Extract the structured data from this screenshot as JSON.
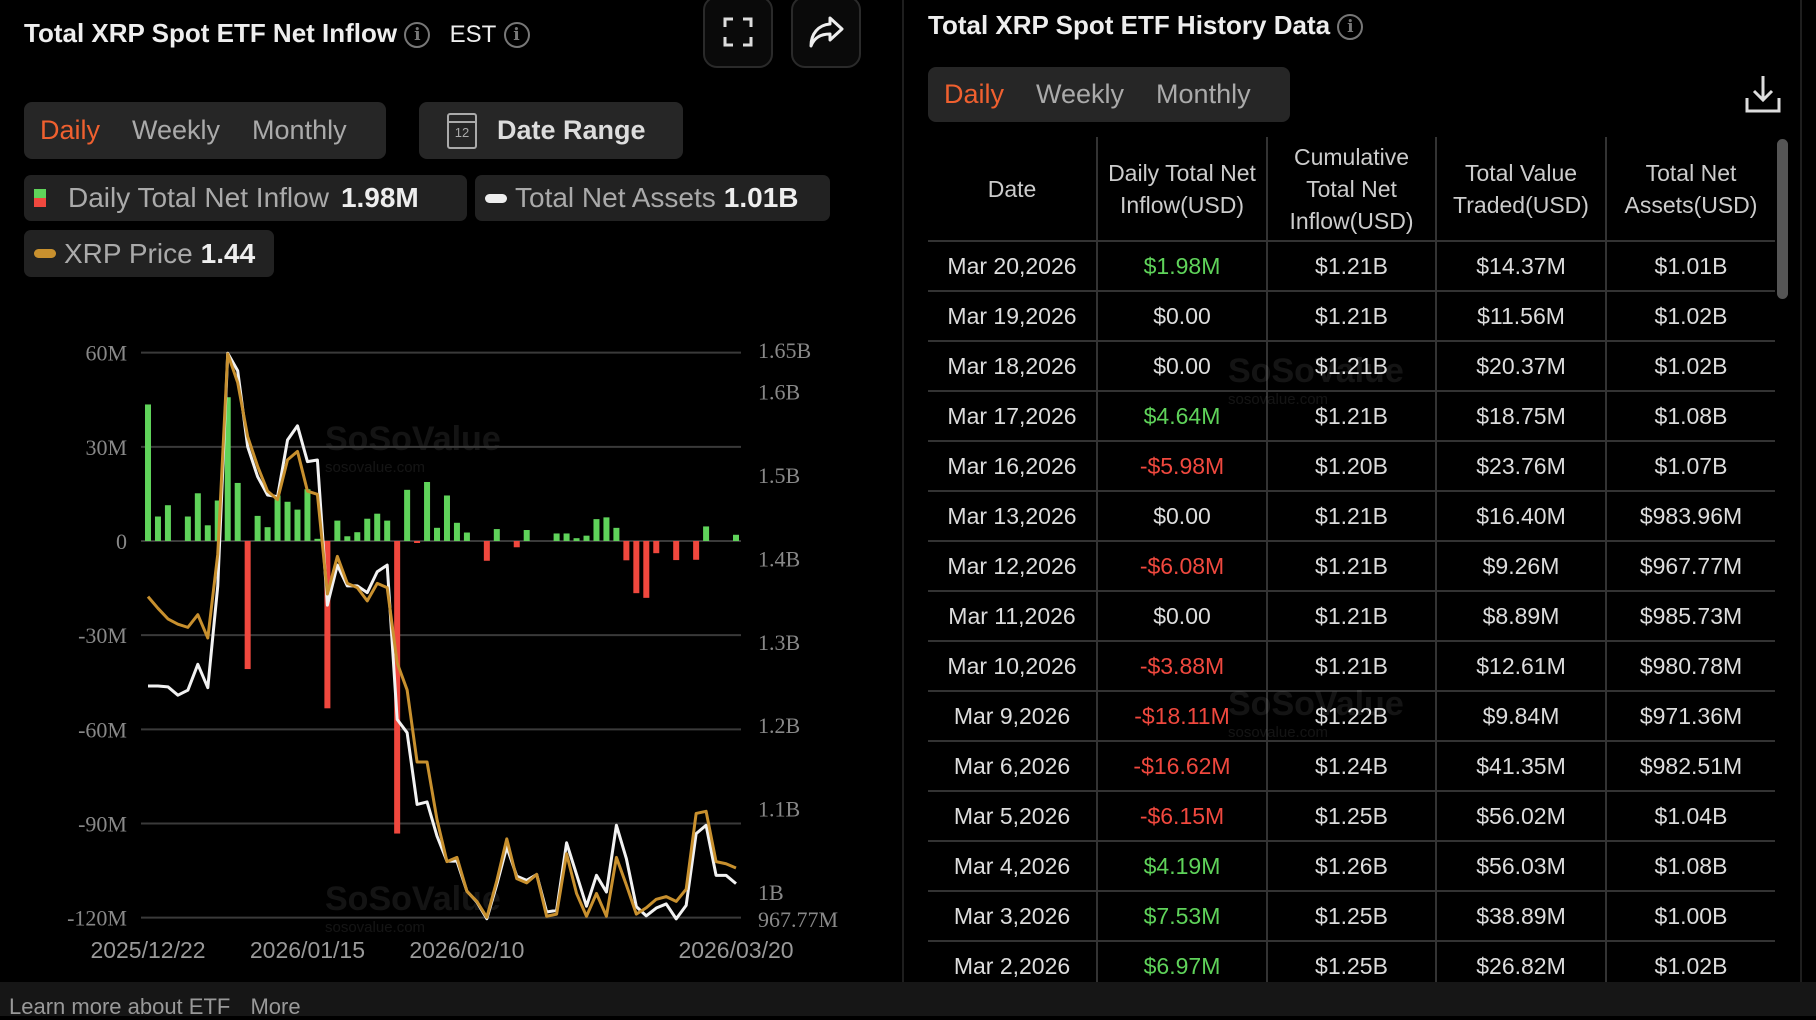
{
  "left": {
    "title": "Total XRP Spot ETF Net Inflow",
    "timezone": "EST",
    "tabs": [
      "Daily",
      "Weekly",
      "Monthly"
    ],
    "active_tab": "Daily",
    "date_range_label": "Date Range",
    "calendar_day": "12",
    "legend": [
      {
        "label": "Daily Total Net Inflow",
        "value": "1.98M"
      },
      {
        "label": "Total Net Assets",
        "value": "1.01B"
      },
      {
        "label": "XRP Price",
        "value": "1.44"
      }
    ]
  },
  "right": {
    "title": "Total XRP Spot ETF History Data",
    "tabs": [
      "Daily",
      "Weekly",
      "Monthly"
    ],
    "active_tab": "Daily",
    "columns": [
      "Date",
      "Daily Total Net Inflow(USD)",
      "Cumulative Total Net Inflow(USD)",
      "Total Value Traded(USD)",
      "Total Net Assets(USD)"
    ],
    "rows": [
      [
        "Mar 20,2026",
        "$1.98M",
        "$1.21B",
        "$14.37M",
        "$1.01B"
      ],
      [
        "Mar 19,2026",
        "$0.00",
        "$1.21B",
        "$11.56M",
        "$1.02B"
      ],
      [
        "Mar 18,2026",
        "$0.00",
        "$1.21B",
        "$20.37M",
        "$1.02B"
      ],
      [
        "Mar 17,2026",
        "$4.64M",
        "$1.21B",
        "$18.75M",
        "$1.08B"
      ],
      [
        "Mar 16,2026",
        "-$5.98M",
        "$1.20B",
        "$23.76M",
        "$1.07B"
      ],
      [
        "Mar 13,2026",
        "$0.00",
        "$1.21B",
        "$16.40M",
        "$983.96M"
      ],
      [
        "Mar 12,2026",
        "-$6.08M",
        "$1.21B",
        "$9.26M",
        "$967.77M"
      ],
      [
        "Mar 11,2026",
        "$0.00",
        "$1.21B",
        "$8.89M",
        "$985.73M"
      ],
      [
        "Mar 10,2026",
        "-$3.88M",
        "$1.21B",
        "$12.61M",
        "$980.78M"
      ],
      [
        "Mar 9,2026",
        "-$18.11M",
        "$1.22B",
        "$9.84M",
        "$971.36M"
      ],
      [
        "Mar 6,2026",
        "-$16.62M",
        "$1.24B",
        "$41.35M",
        "$982.51M"
      ],
      [
        "Mar 5,2026",
        "-$6.15M",
        "$1.25B",
        "$56.02M",
        "$1.04B"
      ],
      [
        "Mar 4,2026",
        "$4.19M",
        "$1.26B",
        "$56.03M",
        "$1.08B"
      ],
      [
        "Mar 3,2026",
        "$7.53M",
        "$1.25B",
        "$38.89M",
        "$1.00B"
      ],
      [
        "Mar 2,2026",
        "$6.97M",
        "$1.25B",
        "$26.82M",
        "$1.02B"
      ]
    ]
  },
  "watermark": {
    "brand": "SoSoValue",
    "site": "sosovalue.com"
  },
  "footer": {
    "learn": "Learn more about ETF",
    "more": "More"
  },
  "colors": {
    "accent": "#f0602f",
    "inflow": "#5fd35a",
    "outflow": "#f0483e",
    "assets": "#f2f2f2",
    "price": "#c8902e"
  },
  "chart_data": {
    "type": "bar+line",
    "title": "Total XRP Spot ETF Net Inflow",
    "left_axis": {
      "ticks": [
        "60M",
        "30M",
        "0",
        "-30M",
        "-60M",
        "-90M",
        "-120M"
      ],
      "tick_values": [
        60,
        30,
        0,
        -30,
        -60,
        -90,
        -120
      ],
      "range": [
        -120,
        60
      ],
      "unit": "M USD"
    },
    "right_axis": {
      "ticks": [
        "1.65B",
        "1.6B",
        "1.5B",
        "1.4B",
        "1.3B",
        "1.2B",
        "1.1B",
        "1B",
        "967.77M"
      ],
      "tick_values": [
        1.65,
        1.6,
        1.5,
        1.4,
        1.3,
        1.2,
        1.1,
        1.0,
        0.96777
      ],
      "range": [
        0.96777,
        1.65
      ],
      "unit": "B USD"
    },
    "price_range": [
      1.44,
      2.41
    ],
    "xticks": [
      {
        "label": "2025/12/22",
        "index": 0
      },
      {
        "label": "2026/01/15",
        "index": 16
      },
      {
        "label": "2026/02/10",
        "index": 32
      },
      {
        "label": "2026/03/20",
        "index": 59
      }
    ],
    "grid": true,
    "series": [
      {
        "name": "Daily Total Net Inflow",
        "type": "bar",
        "values": [
          43.5,
          7.8,
          11.4,
          0,
          7.8,
          15.2,
          5,
          12.9,
          45.8,
          18.5,
          -40.8,
          8,
          4.4,
          14.5,
          12.5,
          10,
          16.5,
          0.7,
          -53.3,
          6.5,
          1.5,
          2.8,
          7.1,
          8.7,
          6.5,
          -93.2,
          16.3,
          -0.3,
          18.8,
          4.2,
          14.5,
          5.8,
          2.7,
          0,
          -6.3,
          3.8,
          0,
          -2,
          3.5,
          0,
          0,
          2.4,
          2.4,
          0.9,
          1.7,
          6.97,
          7.53,
          4.19,
          -6.15,
          -16.62,
          -18.11,
          -3.88,
          0,
          -6.08,
          0,
          -5.98,
          4.64,
          0,
          0,
          1.98
        ]
      },
      {
        "name": "Total Net Assets",
        "type": "line",
        "values": [
          1.247,
          1.247,
          1.246,
          1.236,
          1.242,
          1.273,
          1.245,
          1.367,
          1.646,
          1.625,
          1.534,
          1.498,
          1.476,
          1.474,
          1.542,
          1.559,
          1.516,
          1.518,
          1.344,
          1.392,
          1.367,
          1.367,
          1.359,
          1.384,
          1.392,
          1.207,
          1.191,
          1.105,
          1.108,
          1.067,
          1.037,
          1.037,
          1.001,
          0.988,
          0.968,
          1.009,
          1.054,
          1.019,
          1.014,
          1.021,
          0.976,
          0.978,
          1.059,
          1.021,
          0.983,
          1.02,
          1.0,
          1.08,
          1.04,
          0.9825,
          0.9714,
          0.9808,
          0.9857,
          0.9678,
          0.984,
          1.07,
          1.08,
          1.02,
          1.02,
          1.01
        ]
      },
      {
        "name": "XRP Price",
        "type": "line",
        "values": [
          1.952,
          1.93,
          1.91,
          1.9,
          1.894,
          1.918,
          1.874,
          2.032,
          2.41,
          2.356,
          2.254,
          2.198,
          2.151,
          2.135,
          2.21,
          2.226,
          2.151,
          2.145,
          1.957,
          2.028,
          1.977,
          1.969,
          1.944,
          1.977,
          1.969,
          1.827,
          1.776,
          1.64,
          1.64,
          1.531,
          1.452,
          1.46,
          1.396,
          1.377,
          1.347,
          1.416,
          1.495,
          1.42,
          1.412,
          1.428,
          1.349,
          1.353,
          1.467,
          1.392,
          1.349,
          1.392,
          1.349,
          1.46,
          1.408,
          1.353,
          1.365,
          1.381,
          1.386,
          1.377,
          1.4,
          1.543,
          1.547,
          1.452,
          1.448,
          1.44
        ]
      }
    ]
  }
}
